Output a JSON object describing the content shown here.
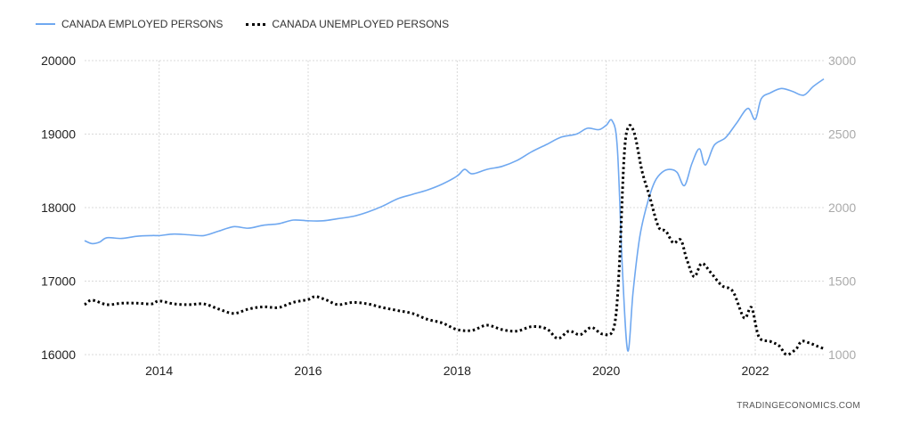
{
  "legend": {
    "employed": "CANADA EMPLOYED PERSONS",
    "unemployed": "CANADA UNEMPLOYED PERSONS"
  },
  "source": "TRADINGECONOMICS.COM",
  "colors": {
    "employed": "#6fa8f0",
    "unemployed": "#000000",
    "grid": "#d9d9d9"
  },
  "chart_data": {
    "type": "line",
    "x_ticks": [
      "2014",
      "2016",
      "2018",
      "2020",
      "2022"
    ],
    "x_range": [
      2013.0,
      2022.92
    ],
    "y_left": {
      "ticks": [
        16000,
        17000,
        18000,
        19000,
        20000
      ],
      "range": [
        16000,
        20000
      ]
    },
    "y_right": {
      "ticks": [
        1000,
        1500,
        2000,
        2500,
        3000
      ],
      "range": [
        1000,
        3000
      ]
    },
    "grid": true,
    "legend_position": "top-left",
    "series": [
      {
        "name": "CANADA EMPLOYED PERSONS",
        "axis": "left",
        "style": "solid",
        "points": [
          [
            2013.0,
            17550
          ],
          [
            2013.1,
            17510
          ],
          [
            2013.2,
            17530
          ],
          [
            2013.3,
            17590
          ],
          [
            2013.5,
            17580
          ],
          [
            2013.7,
            17610
          ],
          [
            2013.9,
            17620
          ],
          [
            2014.0,
            17620
          ],
          [
            2014.2,
            17640
          ],
          [
            2014.4,
            17630
          ],
          [
            2014.6,
            17620
          ],
          [
            2014.8,
            17680
          ],
          [
            2015.0,
            17740
          ],
          [
            2015.2,
            17720
          ],
          [
            2015.4,
            17760
          ],
          [
            2015.6,
            17780
          ],
          [
            2015.8,
            17830
          ],
          [
            2016.0,
            17820
          ],
          [
            2016.2,
            17820
          ],
          [
            2016.4,
            17850
          ],
          [
            2016.6,
            17880
          ],
          [
            2016.8,
            17940
          ],
          [
            2017.0,
            18020
          ],
          [
            2017.2,
            18120
          ],
          [
            2017.4,
            18180
          ],
          [
            2017.6,
            18240
          ],
          [
            2017.8,
            18320
          ],
          [
            2018.0,
            18430
          ],
          [
            2018.1,
            18520
          ],
          [
            2018.2,
            18460
          ],
          [
            2018.4,
            18520
          ],
          [
            2018.6,
            18560
          ],
          [
            2018.8,
            18640
          ],
          [
            2019.0,
            18760
          ],
          [
            2019.2,
            18860
          ],
          [
            2019.4,
            18960
          ],
          [
            2019.6,
            19000
          ],
          [
            2019.75,
            19080
          ],
          [
            2019.9,
            19060
          ],
          [
            2020.0,
            19120
          ],
          [
            2020.08,
            19180
          ],
          [
            2020.15,
            18800
          ],
          [
            2020.22,
            17100
          ],
          [
            2020.29,
            16050
          ],
          [
            2020.36,
            16850
          ],
          [
            2020.45,
            17600
          ],
          [
            2020.55,
            18050
          ],
          [
            2020.65,
            18350
          ],
          [
            2020.75,
            18480
          ],
          [
            2020.85,
            18520
          ],
          [
            2020.95,
            18480
          ],
          [
            2021.05,
            18300
          ],
          [
            2021.15,
            18600
          ],
          [
            2021.25,
            18800
          ],
          [
            2021.33,
            18580
          ],
          [
            2021.45,
            18850
          ],
          [
            2021.6,
            18950
          ],
          [
            2021.75,
            19150
          ],
          [
            2021.9,
            19350
          ],
          [
            2022.0,
            19200
          ],
          [
            2022.08,
            19480
          ],
          [
            2022.2,
            19560
          ],
          [
            2022.35,
            19620
          ],
          [
            2022.5,
            19580
          ],
          [
            2022.65,
            19530
          ],
          [
            2022.78,
            19650
          ],
          [
            2022.92,
            19750
          ]
        ]
      },
      {
        "name": "CANADA UNEMPLOYED PERSONS",
        "axis": "right",
        "style": "dotted",
        "points": [
          [
            2013.0,
            1340
          ],
          [
            2013.1,
            1370
          ],
          [
            2013.3,
            1340
          ],
          [
            2013.5,
            1350
          ],
          [
            2013.7,
            1350
          ],
          [
            2013.9,
            1345
          ],
          [
            2014.0,
            1365
          ],
          [
            2014.2,
            1345
          ],
          [
            2014.4,
            1340
          ],
          [
            2014.6,
            1345
          ],
          [
            2014.8,
            1310
          ],
          [
            2015.0,
            1280
          ],
          [
            2015.2,
            1310
          ],
          [
            2015.4,
            1325
          ],
          [
            2015.6,
            1320
          ],
          [
            2015.8,
            1355
          ],
          [
            2016.0,
            1375
          ],
          [
            2016.1,
            1395
          ],
          [
            2016.25,
            1370
          ],
          [
            2016.4,
            1340
          ],
          [
            2016.6,
            1355
          ],
          [
            2016.8,
            1345
          ],
          [
            2017.0,
            1320
          ],
          [
            2017.2,
            1300
          ],
          [
            2017.4,
            1280
          ],
          [
            2017.6,
            1240
          ],
          [
            2017.8,
            1215
          ],
          [
            2018.0,
            1170
          ],
          [
            2018.2,
            1165
          ],
          [
            2018.4,
            1200
          ],
          [
            2018.6,
            1170
          ],
          [
            2018.8,
            1160
          ],
          [
            2019.0,
            1190
          ],
          [
            2019.2,
            1175
          ],
          [
            2019.35,
            1110
          ],
          [
            2019.5,
            1160
          ],
          [
            2019.65,
            1135
          ],
          [
            2019.8,
            1185
          ],
          [
            2019.95,
            1140
          ],
          [
            2020.1,
            1180
          ],
          [
            2020.17,
            1550
          ],
          [
            2020.24,
            2350
          ],
          [
            2020.3,
            2550
          ],
          [
            2020.38,
            2500
          ],
          [
            2020.48,
            2250
          ],
          [
            2020.58,
            2080
          ],
          [
            2020.7,
            1870
          ],
          [
            2020.8,
            1840
          ],
          [
            2020.9,
            1760
          ],
          [
            2021.0,
            1780
          ],
          [
            2021.08,
            1650
          ],
          [
            2021.18,
            1530
          ],
          [
            2021.28,
            1620
          ],
          [
            2021.4,
            1560
          ],
          [
            2021.55,
            1470
          ],
          [
            2021.7,
            1430
          ],
          [
            2021.85,
            1250
          ],
          [
            2021.95,
            1320
          ],
          [
            2022.05,
            1120
          ],
          [
            2022.2,
            1090
          ],
          [
            2022.32,
            1060
          ],
          [
            2022.42,
            1000
          ],
          [
            2022.55,
            1040
          ],
          [
            2022.62,
            1090
          ],
          [
            2022.72,
            1080
          ],
          [
            2022.82,
            1060
          ],
          [
            2022.92,
            1040
          ]
        ]
      }
    ]
  }
}
